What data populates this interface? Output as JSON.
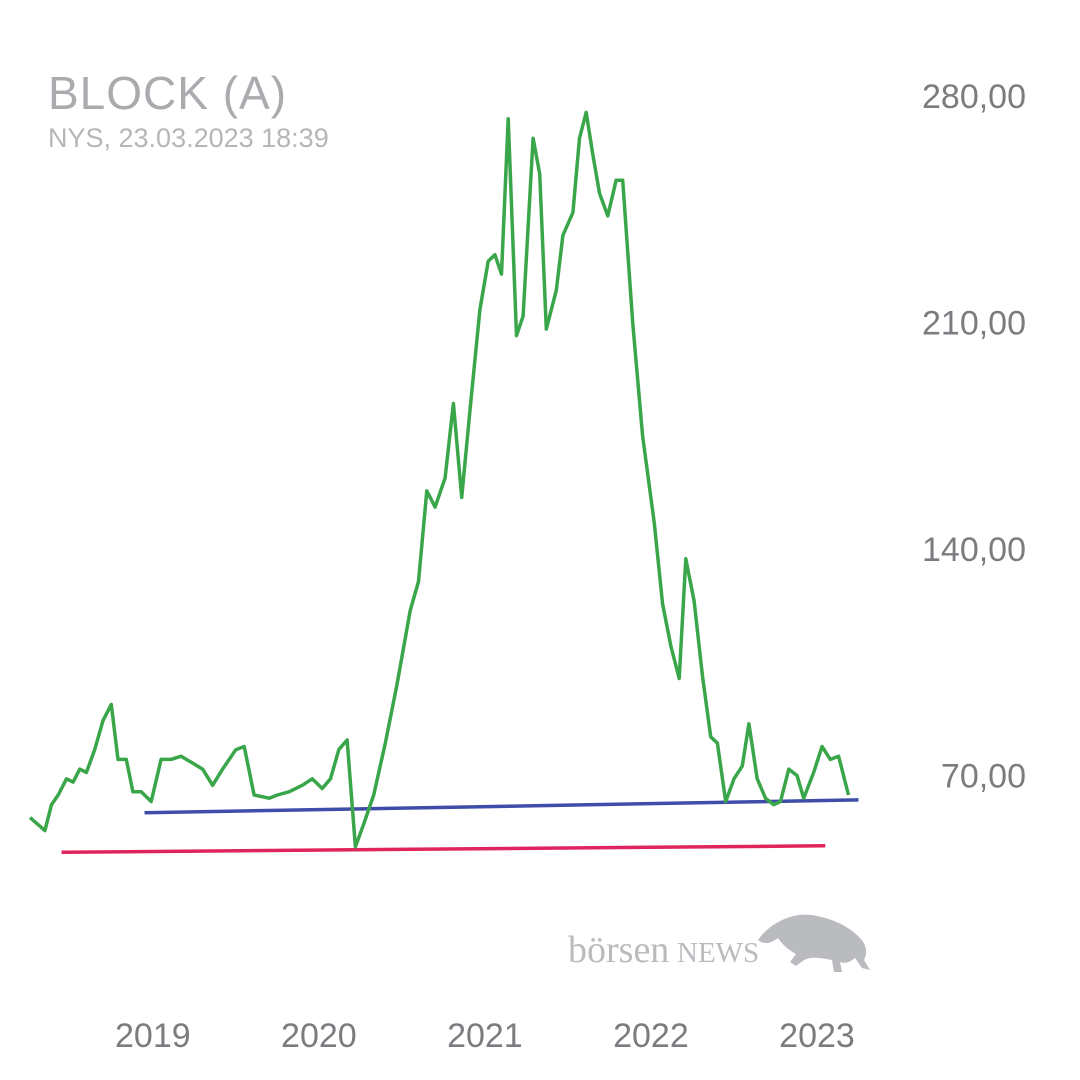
{
  "header": {
    "title": "BLOCK (A)",
    "subtitle": "NYS, 23.03.2023 18:39"
  },
  "watermark": {
    "brand_prefix": "börsen",
    "brand_suffix": "NEWS",
    "icon": "bull-icon",
    "color": "#b9bbbe"
  },
  "colors": {
    "price_line": "#3aa64a",
    "support_blue": "#3f4ca8",
    "support_red": "#e0245e",
    "axis_text": "#7a7c80",
    "title_text": "#a9abae"
  },
  "chart_data": {
    "type": "line",
    "title": "BLOCK (A)",
    "subtitle": "NYS, 23.03.2023 18:39",
    "xlabel": "",
    "ylabel": "",
    "x_ticks": [
      2019,
      2020,
      2021,
      2022,
      2023
    ],
    "y_ticks": [
      70,
      140,
      210,
      280
    ],
    "y_tick_labels": [
      "70,00",
      "140,00",
      "210,00",
      "280,00"
    ],
    "ylim": [
      30,
      285
    ],
    "xlim": [
      2018.2,
      2023.5
    ],
    "grid": false,
    "legend": "none",
    "series": [
      {
        "color": "#3aa64a",
        "points": [
          [
            2018.26,
            57
          ],
          [
            2018.35,
            53
          ],
          [
            2018.39,
            61
          ],
          [
            2018.43,
            64
          ],
          [
            2018.48,
            69
          ],
          [
            2018.52,
            68
          ],
          [
            2018.56,
            72
          ],
          [
            2018.6,
            71
          ],
          [
            2018.65,
            78
          ],
          [
            2018.7,
            87
          ],
          [
            2018.75,
            92
          ],
          [
            2018.79,
            75
          ],
          [
            2018.84,
            75
          ],
          [
            2018.88,
            65
          ],
          [
            2018.93,
            65
          ],
          [
            2018.99,
            62
          ],
          [
            2019.05,
            75
          ],
          [
            2019.11,
            75
          ],
          [
            2019.17,
            76
          ],
          [
            2019.3,
            72
          ],
          [
            2019.36,
            67
          ],
          [
            2019.42,
            72
          ],
          [
            2019.5,
            78
          ],
          [
            2019.55,
            79
          ],
          [
            2019.61,
            64
          ],
          [
            2019.7,
            63
          ],
          [
            2019.75,
            64
          ],
          [
            2019.82,
            65
          ],
          [
            2019.9,
            67
          ],
          [
            2019.96,
            69
          ],
          [
            2020.02,
            66
          ],
          [
            2020.07,
            69
          ],
          [
            2020.12,
            78
          ],
          [
            2020.17,
            81
          ],
          [
            2020.22,
            48
          ],
          [
            2020.27,
            55
          ],
          [
            2020.33,
            64
          ],
          [
            2020.4,
            80
          ],
          [
            2020.47,
            98
          ],
          [
            2020.55,
            121
          ],
          [
            2020.6,
            130
          ],
          [
            2020.65,
            158
          ],
          [
            2020.7,
            153
          ],
          [
            2020.76,
            162
          ],
          [
            2020.81,
            185
          ],
          [
            2020.86,
            156
          ],
          [
            2020.91,
            183
          ],
          [
            2020.97,
            214
          ],
          [
            2021.02,
            229
          ],
          [
            2021.06,
            231
          ],
          [
            2021.1,
            225
          ],
          [
            2021.14,
            273
          ],
          [
            2021.19,
            206
          ],
          [
            2021.23,
            212
          ],
          [
            2021.29,
            267
          ],
          [
            2021.33,
            256
          ],
          [
            2021.37,
            208
          ],
          [
            2021.43,
            220
          ],
          [
            2021.47,
            237
          ],
          [
            2021.53,
            244
          ],
          [
            2021.57,
            267
          ],
          [
            2021.61,
            275
          ],
          [
            2021.65,
            262
          ],
          [
            2021.69,
            250
          ],
          [
            2021.74,
            243
          ],
          [
            2021.79,
            254
          ],
          [
            2021.83,
            254
          ],
          [
            2021.89,
            210
          ],
          [
            2021.95,
            175
          ],
          [
            2022.02,
            148
          ],
          [
            2022.07,
            123
          ],
          [
            2022.12,
            110
          ],
          [
            2022.17,
            100
          ],
          [
            2022.21,
            137
          ],
          [
            2022.26,
            124
          ],
          [
            2022.31,
            101
          ],
          [
            2022.36,
            82
          ],
          [
            2022.4,
            80
          ],
          [
            2022.45,
            62
          ],
          [
            2022.5,
            69
          ],
          [
            2022.55,
            73
          ],
          [
            2022.59,
            86
          ],
          [
            2022.64,
            69
          ],
          [
            2022.69,
            63
          ],
          [
            2022.74,
            61
          ],
          [
            2022.78,
            62
          ],
          [
            2022.83,
            72
          ],
          [
            2022.88,
            70
          ],
          [
            2022.92,
            63
          ],
          [
            2022.98,
            71
          ],
          [
            2023.03,
            79
          ],
          [
            2023.08,
            75
          ],
          [
            2023.13,
            76
          ],
          [
            2023.19,
            64
          ]
        ]
      }
    ],
    "trendlines": [
      {
        "name": "",
        "color": "#3f4ca8",
        "from": [
          2018.95,
          58.5
        ],
        "to": [
          2023.25,
          62.5
        ]
      },
      {
        "name": "",
        "color": "#e0245e",
        "from": [
          2018.45,
          46.3
        ],
        "to": [
          2023.05,
          48.3
        ]
      }
    ]
  }
}
